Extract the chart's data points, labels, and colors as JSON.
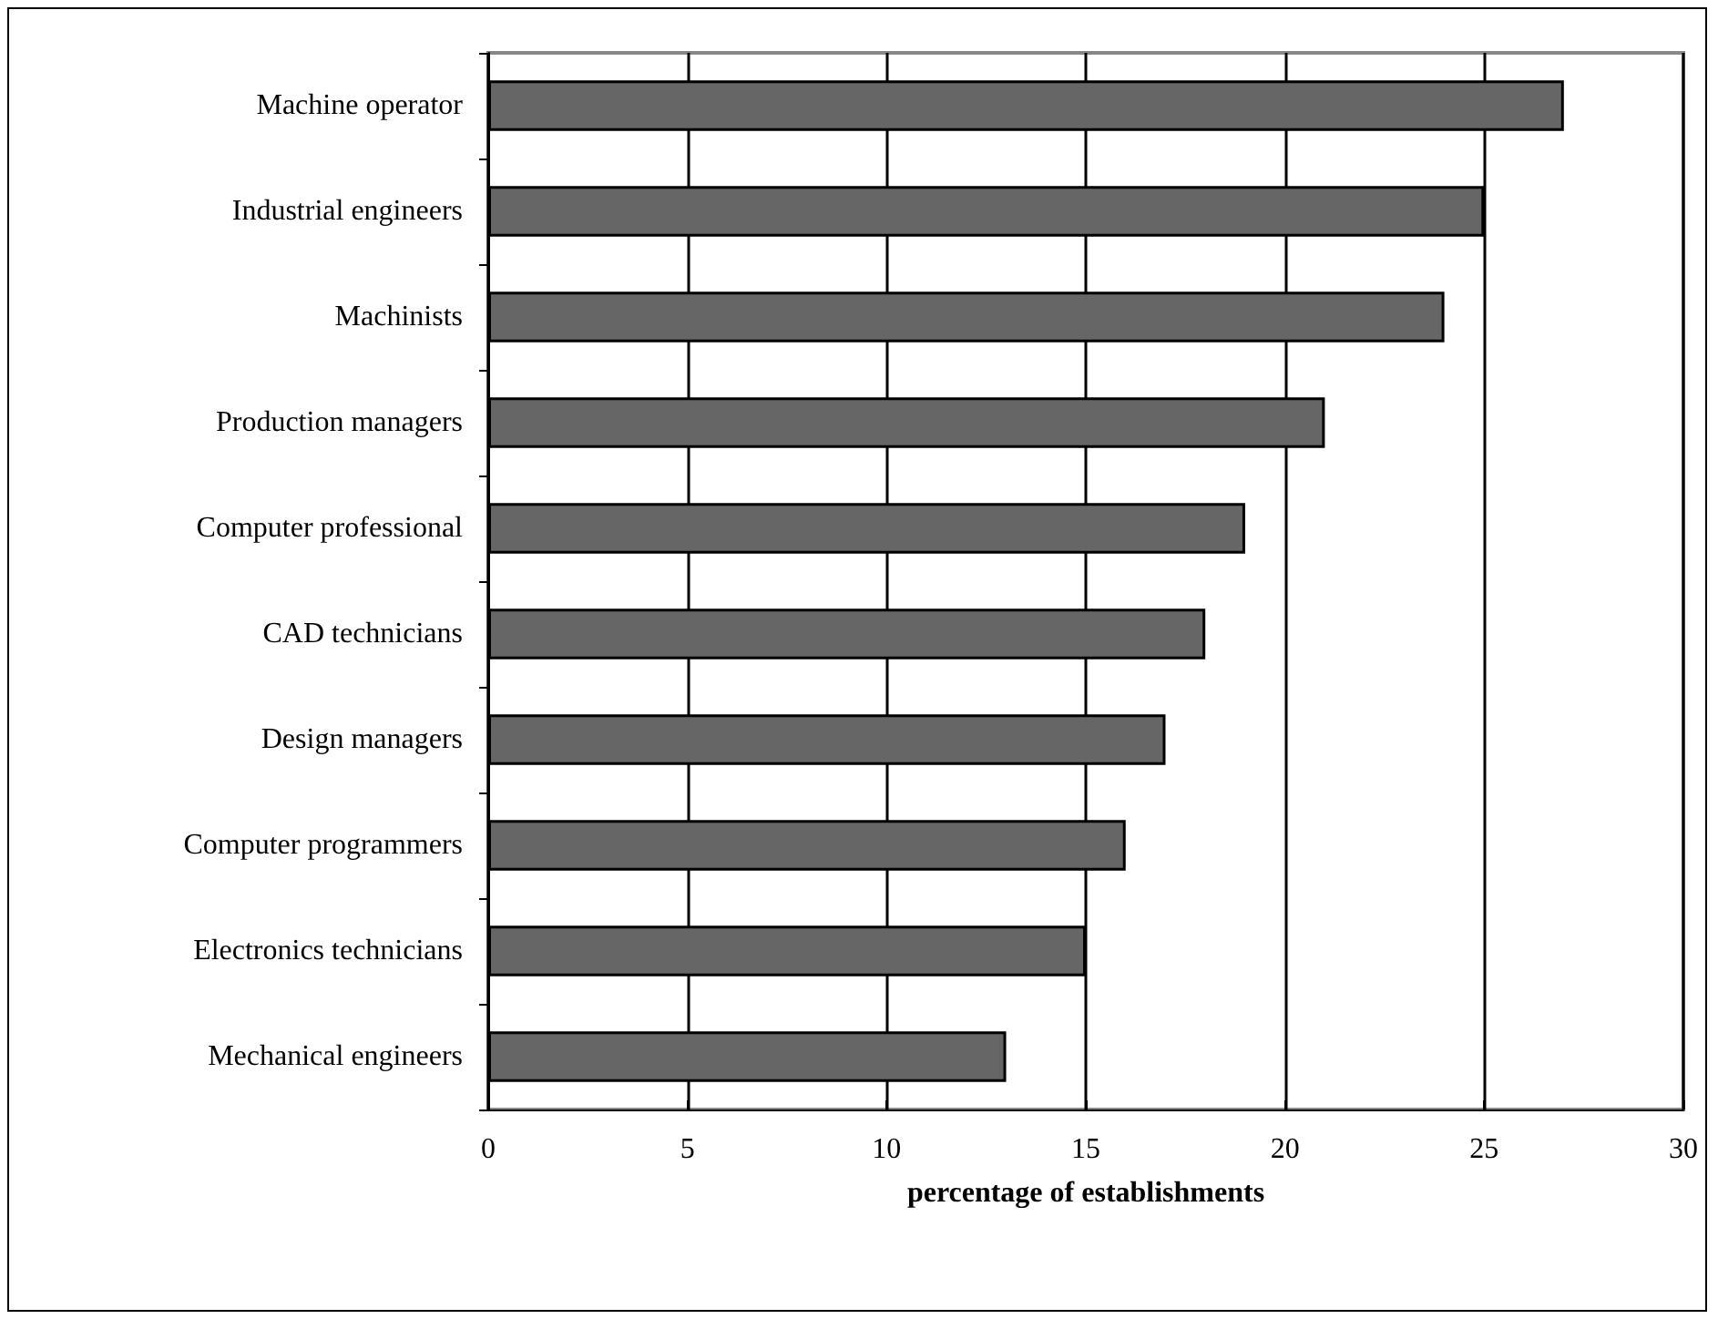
{
  "chart_data": {
    "type": "bar",
    "orientation": "horizontal",
    "xlabel": "percentage of establishments",
    "categories": [
      "Machine operator",
      "Industrial engineers",
      "Machinists",
      "Production managers",
      "Computer professional",
      "CAD technicians",
      "Design managers",
      "Computer programmers",
      "Electronics technicians",
      "Mechanical engineers"
    ],
    "values": [
      27,
      25,
      24,
      21,
      19,
      18,
      17,
      16,
      15,
      13
    ],
    "color": "#666666",
    "xlim": [
      0,
      30
    ],
    "xticks": [
      0,
      5,
      10,
      15,
      20,
      25,
      30
    ],
    "grid": "x"
  }
}
